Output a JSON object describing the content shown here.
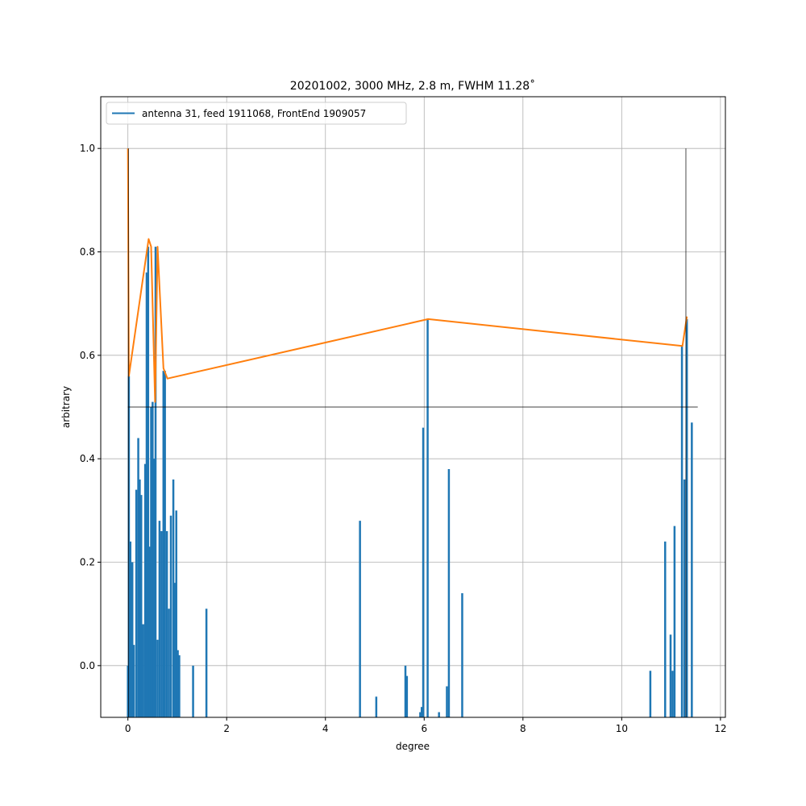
{
  "chart_data": {
    "type": "line",
    "title": "20201002, 3000 MHz, 2.8 m, FWHM 11.28˚",
    "xlabel": "degree",
    "ylabel": "arbitrary",
    "xlim": [
      -0.55,
      12.1
    ],
    "ylim": [
      -0.1,
      1.1
    ],
    "x_ticks": [
      0,
      2,
      4,
      6,
      8,
      10,
      12
    ],
    "x_tick_labels": [
      "0",
      "2",
      "4",
      "6",
      "8",
      "10",
      "12"
    ],
    "y_ticks": [
      0.0,
      0.2,
      0.4,
      0.6,
      0.8,
      1.0
    ],
    "y_tick_labels": [
      "0.0",
      "0.2",
      "0.4",
      "0.6",
      "0.8",
      "1.0"
    ],
    "grid": true,
    "legend": {
      "placement": "top-left",
      "entries": [
        "antenna 31, feed 1911068, FrontEnd 1909057"
      ]
    },
    "colors": {
      "measured": "#1f77b4",
      "envelope": "#ff7f0e",
      "reference": "#000000",
      "grid": "#b0b0b0"
    },
    "series": [
      {
        "name": "antenna 31, feed 1911068, FrontEnd 1909057",
        "style": "spikes",
        "baseline": -0.1,
        "x": [
          0.0,
          0.02,
          0.05,
          0.09,
          0.12,
          0.17,
          0.21,
          0.24,
          0.27,
          0.31,
          0.35,
          0.38,
          0.41,
          0.44,
          0.47,
          0.5,
          0.53,
          0.56,
          0.6,
          0.64,
          0.68,
          0.72,
          0.75,
          0.79,
          0.83,
          0.87,
          0.92,
          0.95,
          0.98,
          1.01,
          1.04,
          1.32,
          1.59,
          4.7,
          5.03,
          5.62,
          5.65,
          5.92,
          5.95,
          5.98,
          6.07,
          6.3,
          6.46,
          6.5,
          6.77,
          10.58,
          10.88,
          10.99,
          11.03,
          11.07,
          11.22,
          11.27,
          11.32,
          11.42
        ],
        "values": [
          0.0,
          0.56,
          0.24,
          0.2,
          0.04,
          0.34,
          0.44,
          0.36,
          0.33,
          0.08,
          0.39,
          0.76,
          0.81,
          0.23,
          0.5,
          0.51,
          0.4,
          0.81,
          0.05,
          0.28,
          0.26,
          0.57,
          0.57,
          0.26,
          0.11,
          0.29,
          0.36,
          0.16,
          0.3,
          0.03,
          0.02,
          0.0,
          0.11,
          0.28,
          -0.06,
          0.0,
          -0.02,
          -0.09,
          -0.08,
          0.46,
          0.67,
          -0.09,
          -0.04,
          0.38,
          0.14,
          -0.01,
          0.24,
          0.06,
          -0.01,
          0.27,
          0.62,
          0.36,
          0.67,
          0.47
        ]
      },
      {
        "name": "",
        "style": "line",
        "x": [
          0.0,
          0.02,
          0.42,
          0.47,
          0.55,
          0.6,
          0.72,
          0.8,
          6.08,
          11.23,
          11.32
        ],
        "values": [
          1.0,
          0.56,
          0.825,
          0.81,
          0.51,
          0.81,
          0.575,
          0.555,
          0.67,
          0.618,
          0.675
        ]
      }
    ],
    "reference_lines": [
      {
        "orientation": "horizontal",
        "y": 0.5,
        "x_from": 0.0,
        "x_to": 11.54
      },
      {
        "orientation": "vertical",
        "x": 0.01,
        "y_from": -0.1,
        "y_to": 1.0
      },
      {
        "orientation": "vertical",
        "x": 11.3,
        "y_from": -0.1,
        "y_to": 1.0
      }
    ]
  }
}
